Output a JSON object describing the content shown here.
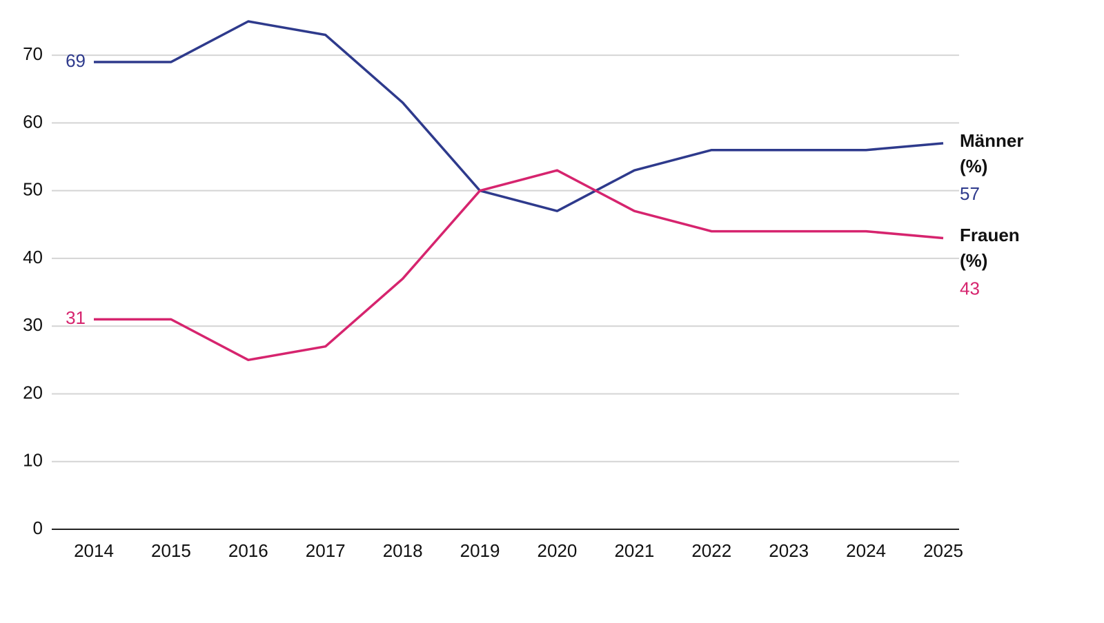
{
  "chart_data": {
    "type": "line",
    "x": [
      2014,
      2015,
      2016,
      2017,
      2018,
      2019,
      2020,
      2021,
      2022,
      2023,
      2024,
      2025
    ],
    "series": [
      {
        "name": "Männer (%)",
        "color": "#2e3a8c",
        "values": [
          69,
          69,
          75,
          73,
          63,
          50,
          47,
          53,
          56,
          56,
          56,
          57
        ]
      },
      {
        "name": "Frauen (%)",
        "color": "#d6246e",
        "values": [
          31,
          31,
          25,
          27,
          37,
          50,
          53,
          47,
          44,
          44,
          44,
          43
        ]
      }
    ],
    "xlim": [
      2014,
      2025
    ],
    "xticks": [
      2014,
      2015,
      2016,
      2017,
      2018,
      2019,
      2020,
      2021,
      2022,
      2023,
      2024,
      2025
    ],
    "ylim": [
      0,
      75
    ],
    "yticks": [
      0,
      10,
      20,
      30,
      40,
      50,
      60,
      70
    ],
    "grid": true
  }
}
